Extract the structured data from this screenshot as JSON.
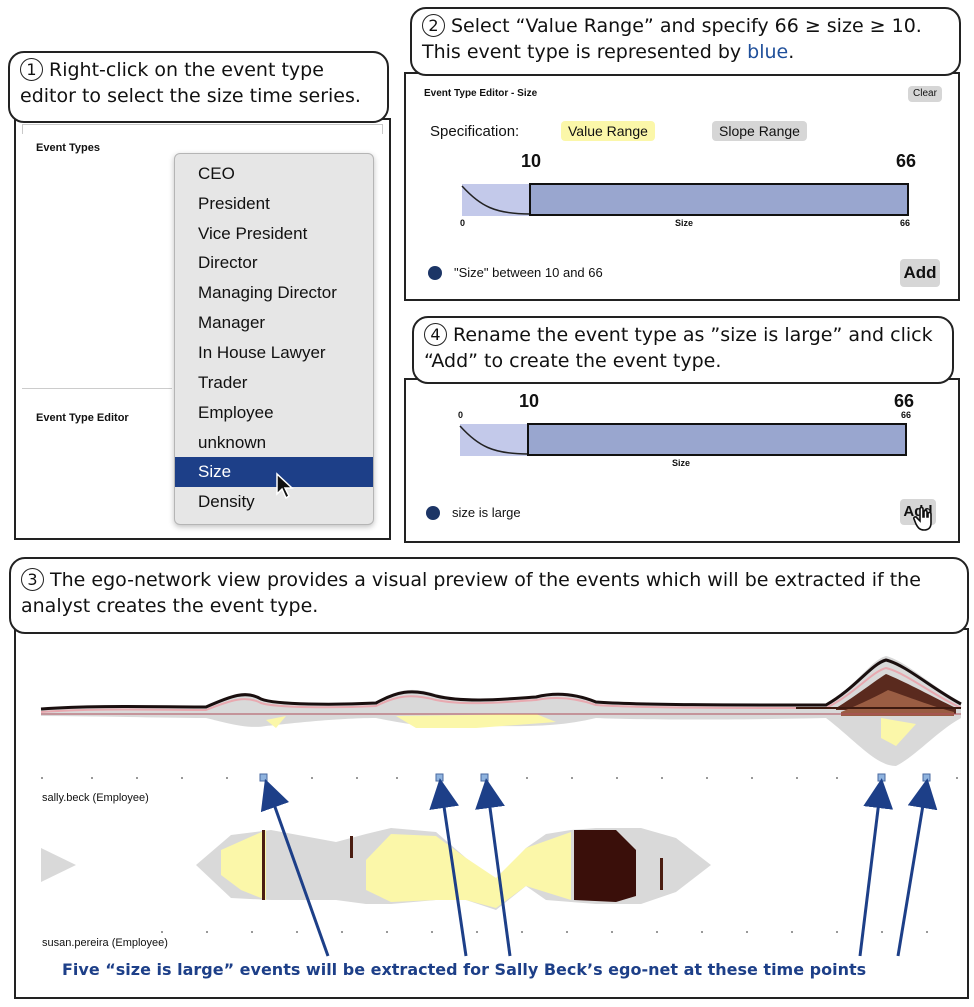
{
  "callouts": {
    "c1": {
      "num": "1",
      "text": "Right-click on the event type editor to select the size time series."
    },
    "c2": {
      "num": "2",
      "text": "Select “Value Range” and specify 66 ≥ size ≥ 10. This event type is represented by ",
      "blue": "blue",
      "after": "."
    },
    "c3": {
      "num": "3",
      "text": "The ego-network view provides a visual preview of the events which will be extracted if the analyst creates the event type."
    },
    "c4": {
      "num": "4",
      "text": "Rename the event type as ”size is large” and click “Add” to create the event type."
    }
  },
  "panel1": {
    "event_types_label": "Event Types",
    "event_type_editor_label": "Event Type Editor",
    "menu_items": [
      "CEO",
      "President",
      "Vice President",
      "Director",
      "Managing Director",
      "Manager",
      "In House Lawyer",
      "Trader",
      "Employee",
      "unknown",
      "Size",
      "Density"
    ],
    "selected_item": "Size"
  },
  "panel2": {
    "title": "Event Type Editor - Size",
    "clear_label": "Clear",
    "specification_label": "Specification:",
    "value_range_label": "Value Range",
    "slope_range_label": "Slope Range",
    "min_value": "10",
    "max_value": "66",
    "axis_min": "0",
    "axis_max": "66",
    "axis_label": "Size",
    "event_label": "\"Size\" between 10 and 66",
    "add_label": "Add"
  },
  "panel4": {
    "min_value": "10",
    "max_value": "66",
    "axis_min": "0",
    "axis_max": "66",
    "axis_label": "Size",
    "event_name": "size is large",
    "add_label": "Add"
  },
  "panel3": {
    "row1_label": "sally.beck (Employee)",
    "row2_label": "susan.pereira (Employee)",
    "caption": "Five “size is large” events will be extracted for Sally Beck’s ego-net at these time points"
  },
  "colors": {
    "accent_blue": "#1f4f9a",
    "selection_blue": "#1d3f88",
    "event_dot": "#1c3566",
    "highlight_yellow": "#fbf7a9",
    "range_bar": "#99a6cf"
  }
}
